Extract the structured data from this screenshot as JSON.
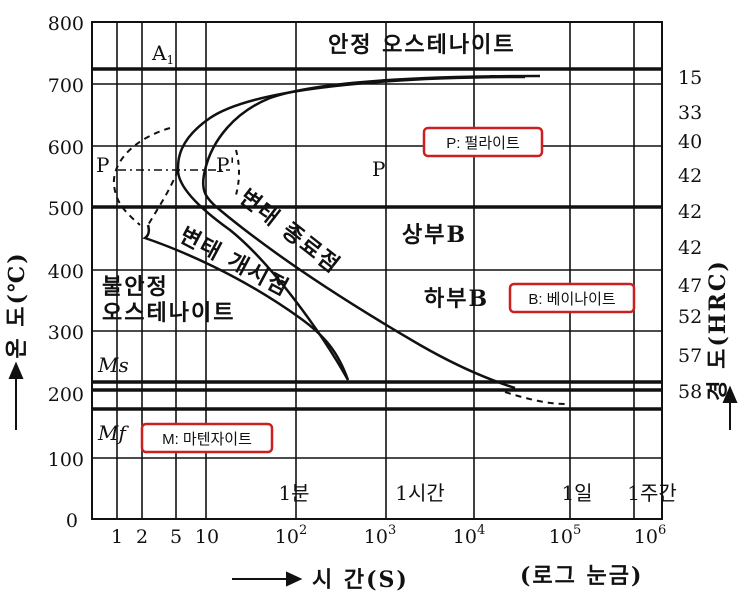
{
  "diagram": {
    "y_axis": {
      "label": "온 도(℃)",
      "ticks": [
        "800",
        "700",
        "600",
        "500",
        "400",
        "300",
        "200",
        "100",
        "0"
      ]
    },
    "x_axis": {
      "label": "시 간(S)",
      "note": "(로그 눈금)",
      "ticks": [
        {
          "base": "1"
        },
        {
          "base": "2"
        },
        {
          "base": "5"
        },
        {
          "base": "10"
        },
        {
          "base": "10",
          "exp": "2"
        },
        {
          "base": "10",
          "exp": "3"
        },
        {
          "base": "10",
          "exp": "4"
        },
        {
          "base": "10",
          "exp": "5"
        },
        {
          "base": "10",
          "exp": "6"
        }
      ],
      "time_marks": [
        "1분",
        "1시간",
        "1일",
        "1주간"
      ]
    },
    "hardness_axis": {
      "label": "경 도(HRC)",
      "values": [
        "15",
        "33",
        "40",
        "42",
        "42",
        "42",
        "47",
        "52",
        "57",
        "58"
      ]
    },
    "labels": {
      "a1": "A",
      "a1_sub": "1",
      "stable_austenite": "안정 오스테나이트",
      "p_left": "P",
      "p_mid": "P'",
      "p_right": "P",
      "upper_b": "상부B",
      "lower_b": "하부B",
      "unstable_1": "불안정",
      "unstable_2": "오스테나이트",
      "start_curve": "변태 개시점",
      "end_curve": "변태 종료점",
      "ms": "Ms",
      "mf": "Mf"
    },
    "callouts": {
      "pearlite": "P: 펄라이트",
      "bainite": "B: 베이나이트",
      "martensite": "M: 마텐자이트"
    },
    "colors": {
      "callout_border": "#cc1f1f",
      "line": "#111111"
    }
  }
}
